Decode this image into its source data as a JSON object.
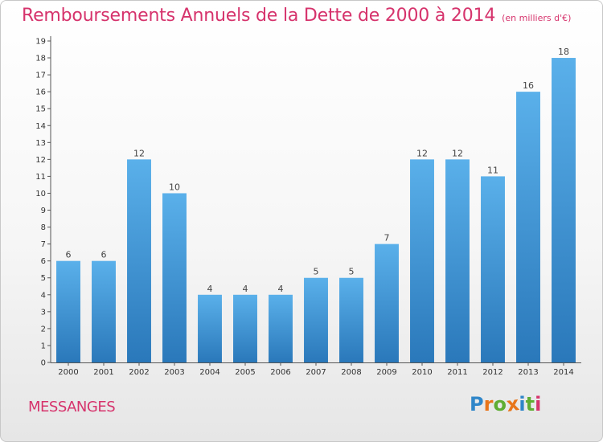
{
  "title": "Remboursements Annuels de la Dette de 2000 à 2014",
  "subtitle": "(en milliers d'€)",
  "place": "MESSANGES",
  "logo": [
    "P",
    "r",
    "o",
    "x",
    "i",
    "t",
    "i"
  ],
  "colors": {
    "title": "#d6336c",
    "bar_top": "#5ab0ea",
    "bar_bottom": "#2a78ba"
  },
  "chart_data": {
    "type": "bar",
    "categories": [
      "2000",
      "2001",
      "2002",
      "2003",
      "2004",
      "2005",
      "2006",
      "2007",
      "2008",
      "2009",
      "2010",
      "2011",
      "2012",
      "2013",
      "2014"
    ],
    "values": [
      6,
      6,
      12,
      10,
      4,
      4,
      4,
      5,
      5,
      7,
      12,
      12,
      11,
      16,
      18
    ],
    "title": "Remboursements Annuels de la Dette de 2000 à 2014",
    "subtitle": "(en milliers d'€)",
    "ylim": [
      0,
      19
    ],
    "yticks": [
      0,
      1,
      2,
      3,
      4,
      5,
      6,
      7,
      8,
      9,
      10,
      11,
      12,
      13,
      14,
      15,
      16,
      17,
      18,
      19
    ],
    "grid": false,
    "data_labels": true
  }
}
